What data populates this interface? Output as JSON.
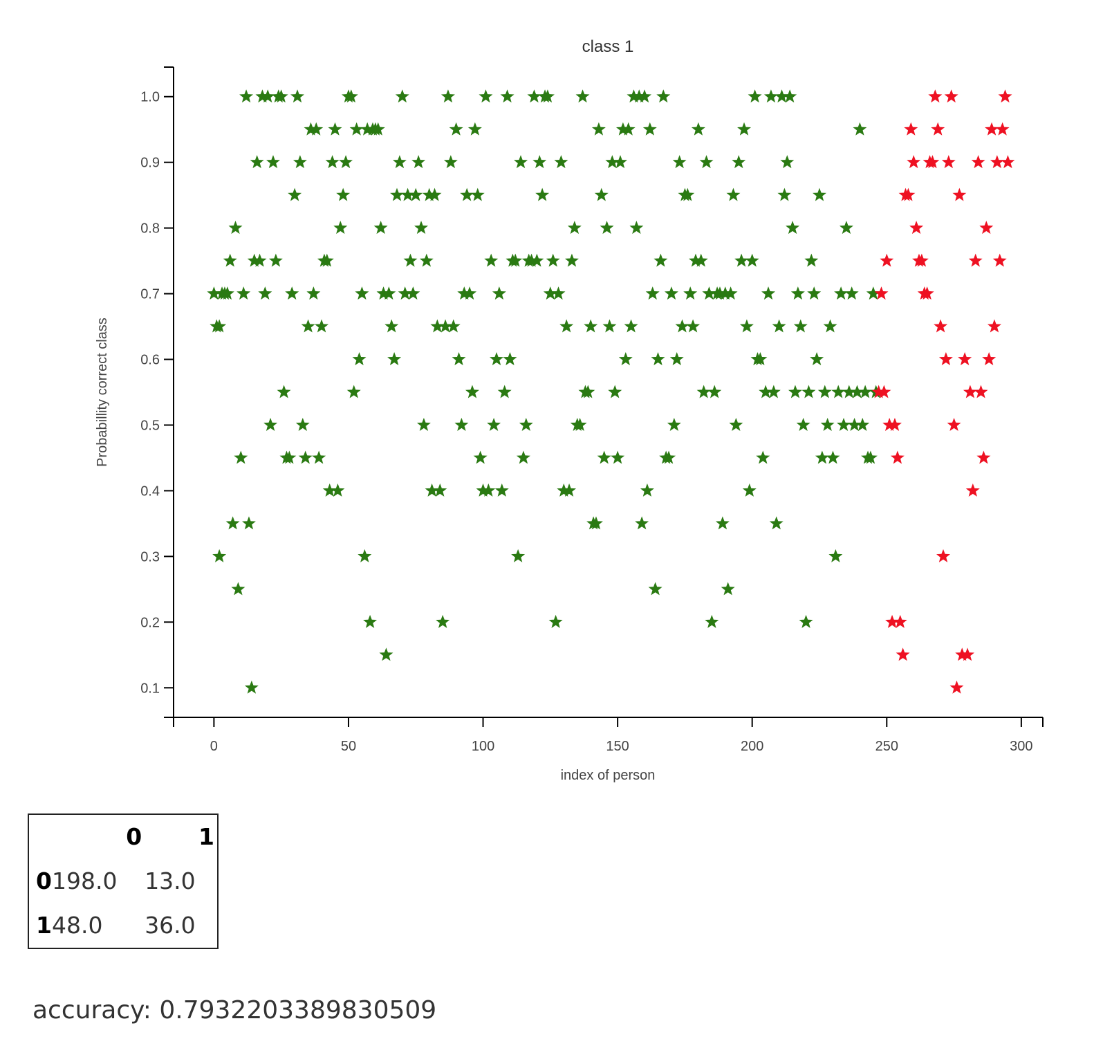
{
  "chart_data": {
    "type": "scatter",
    "title": "class 1",
    "xlabel": "index of person",
    "ylabel": "Probabillity correct class",
    "xlim": [
      -15,
      308
    ],
    "ylim": [
      0.055,
      1.045
    ],
    "x_ticks": [
      0,
      50,
      100,
      150,
      200,
      250,
      300
    ],
    "y_ticks": [
      0.1,
      0.2,
      0.3,
      0.4,
      0.5,
      0.6,
      0.7,
      0.8,
      0.9,
      1.0
    ],
    "marker": "star",
    "grid": false,
    "colors": {
      "green": "#2a7a12",
      "red": "#ee1122"
    },
    "points": [
      [
        0,
        0.7,
        "green"
      ],
      [
        1,
        0.65,
        "green"
      ],
      [
        2,
        0.65,
        "green"
      ],
      [
        2,
        0.3,
        "green"
      ],
      [
        3,
        0.7,
        "green"
      ],
      [
        4,
        0.7,
        "green"
      ],
      [
        5,
        0.7,
        "green"
      ],
      [
        6,
        0.75,
        "green"
      ],
      [
        7,
        0.35,
        "green"
      ],
      [
        8,
        0.8,
        "green"
      ],
      [
        9,
        0.25,
        "green"
      ],
      [
        10,
        0.45,
        "green"
      ],
      [
        11,
        0.7,
        "green"
      ],
      [
        12,
        1.0,
        "green"
      ],
      [
        13,
        0.35,
        "green"
      ],
      [
        14,
        0.1,
        "green"
      ],
      [
        15,
        0.75,
        "green"
      ],
      [
        16,
        0.9,
        "green"
      ],
      [
        17,
        0.75,
        "green"
      ],
      [
        18,
        1.0,
        "green"
      ],
      [
        19,
        0.7,
        "green"
      ],
      [
        20,
        1.0,
        "green"
      ],
      [
        21,
        0.5,
        "green"
      ],
      [
        22,
        0.9,
        "green"
      ],
      [
        23,
        0.75,
        "green"
      ],
      [
        24,
        1.0,
        "green"
      ],
      [
        25,
        1.0,
        "green"
      ],
      [
        26,
        0.55,
        "green"
      ],
      [
        27,
        0.45,
        "green"
      ],
      [
        28,
        0.45,
        "green"
      ],
      [
        29,
        0.7,
        "green"
      ],
      [
        30,
        0.85,
        "green"
      ],
      [
        31,
        1.0,
        "green"
      ],
      [
        32,
        0.9,
        "green"
      ],
      [
        33,
        0.5,
        "green"
      ],
      [
        34,
        0.45,
        "green"
      ],
      [
        35,
        0.65,
        "green"
      ],
      [
        36,
        0.95,
        "green"
      ],
      [
        37,
        0.7,
        "green"
      ],
      [
        38,
        0.95,
        "green"
      ],
      [
        39,
        0.45,
        "green"
      ],
      [
        40,
        0.65,
        "green"
      ],
      [
        41,
        0.75,
        "green"
      ],
      [
        42,
        0.75,
        "green"
      ],
      [
        43,
        0.4,
        "green"
      ],
      [
        44,
        0.9,
        "green"
      ],
      [
        45,
        0.95,
        "green"
      ],
      [
        46,
        0.4,
        "green"
      ],
      [
        47,
        0.8,
        "green"
      ],
      [
        48,
        0.85,
        "green"
      ],
      [
        49,
        0.9,
        "green"
      ],
      [
        50,
        1.0,
        "green"
      ],
      [
        51,
        1.0,
        "green"
      ],
      [
        52,
        0.55,
        "green"
      ],
      [
        53,
        0.95,
        "green"
      ],
      [
        54,
        0.6,
        "green"
      ],
      [
        55,
        0.7,
        "green"
      ],
      [
        56,
        0.3,
        "green"
      ],
      [
        57,
        0.95,
        "green"
      ],
      [
        58,
        0.2,
        "green"
      ],
      [
        59,
        0.95,
        "green"
      ],
      [
        60,
        0.95,
        "green"
      ],
      [
        61,
        0.95,
        "green"
      ],
      [
        62,
        0.8,
        "green"
      ],
      [
        63,
        0.7,
        "green"
      ],
      [
        64,
        0.15,
        "green"
      ],
      [
        65,
        0.7,
        "green"
      ],
      [
        66,
        0.65,
        "green"
      ],
      [
        67,
        0.6,
        "green"
      ],
      [
        68,
        0.85,
        "green"
      ],
      [
        69,
        0.9,
        "green"
      ],
      [
        70,
        1.0,
        "green"
      ],
      [
        71,
        0.7,
        "green"
      ],
      [
        72,
        0.85,
        "green"
      ],
      [
        73,
        0.75,
        "green"
      ],
      [
        74,
        0.7,
        "green"
      ],
      [
        75,
        0.85,
        "green"
      ],
      [
        76,
        0.9,
        "green"
      ],
      [
        77,
        0.8,
        "green"
      ],
      [
        78,
        0.5,
        "green"
      ],
      [
        79,
        0.75,
        "green"
      ],
      [
        80,
        0.85,
        "green"
      ],
      [
        81,
        0.4,
        "green"
      ],
      [
        82,
        0.85,
        "green"
      ],
      [
        83,
        0.65,
        "green"
      ],
      [
        84,
        0.4,
        "green"
      ],
      [
        85,
        0.2,
        "green"
      ],
      [
        86,
        0.65,
        "green"
      ],
      [
        87,
        1.0,
        "green"
      ],
      [
        88,
        0.9,
        "green"
      ],
      [
        89,
        0.65,
        "green"
      ],
      [
        90,
        0.95,
        "green"
      ],
      [
        91,
        0.6,
        "green"
      ],
      [
        92,
        0.5,
        "green"
      ],
      [
        93,
        0.7,
        "green"
      ],
      [
        94,
        0.85,
        "green"
      ],
      [
        95,
        0.7,
        "green"
      ],
      [
        96,
        0.55,
        "green"
      ],
      [
        97,
        0.95,
        "green"
      ],
      [
        98,
        0.85,
        "green"
      ],
      [
        99,
        0.45,
        "green"
      ],
      [
        100,
        0.4,
        "green"
      ],
      [
        101,
        1.0,
        "green"
      ],
      [
        102,
        0.4,
        "green"
      ],
      [
        103,
        0.75,
        "green"
      ],
      [
        104,
        0.5,
        "green"
      ],
      [
        105,
        0.6,
        "green"
      ],
      [
        106,
        0.7,
        "green"
      ],
      [
        107,
        0.4,
        "green"
      ],
      [
        108,
        0.55,
        "green"
      ],
      [
        109,
        1.0,
        "green"
      ],
      [
        110,
        0.6,
        "green"
      ],
      [
        111,
        0.75,
        "green"
      ],
      [
        112,
        0.75,
        "green"
      ],
      [
        113,
        0.3,
        "green"
      ],
      [
        114,
        0.9,
        "green"
      ],
      [
        115,
        0.45,
        "green"
      ],
      [
        116,
        0.5,
        "green"
      ],
      [
        117,
        0.75,
        "green"
      ],
      [
        118,
        0.75,
        "green"
      ],
      [
        119,
        1.0,
        "green"
      ],
      [
        120,
        0.75,
        "green"
      ],
      [
        121,
        0.9,
        "green"
      ],
      [
        122,
        0.85,
        "green"
      ],
      [
        123,
        1.0,
        "green"
      ],
      [
        124,
        1.0,
        "green"
      ],
      [
        125,
        0.7,
        "green"
      ],
      [
        126,
        0.75,
        "green"
      ],
      [
        127,
        0.2,
        "green"
      ],
      [
        128,
        0.7,
        "green"
      ],
      [
        129,
        0.9,
        "green"
      ],
      [
        130,
        0.4,
        "green"
      ],
      [
        131,
        0.65,
        "green"
      ],
      [
        132,
        0.4,
        "green"
      ],
      [
        133,
        0.75,
        "green"
      ],
      [
        134,
        0.8,
        "green"
      ],
      [
        135,
        0.5,
        "green"
      ],
      [
        136,
        0.5,
        "green"
      ],
      [
        137,
        1.0,
        "green"
      ],
      [
        138,
        0.55,
        "green"
      ],
      [
        139,
        0.55,
        "green"
      ],
      [
        140,
        0.65,
        "green"
      ],
      [
        141,
        0.35,
        "green"
      ],
      [
        142,
        0.35,
        "green"
      ],
      [
        143,
        0.95,
        "green"
      ],
      [
        144,
        0.85,
        "green"
      ],
      [
        145,
        0.45,
        "green"
      ],
      [
        146,
        0.8,
        "green"
      ],
      [
        147,
        0.65,
        "green"
      ],
      [
        148,
        0.9,
        "green"
      ],
      [
        149,
        0.55,
        "green"
      ],
      [
        150,
        0.45,
        "green"
      ],
      [
        151,
        0.9,
        "green"
      ],
      [
        152,
        0.95,
        "green"
      ],
      [
        153,
        0.6,
        "green"
      ],
      [
        154,
        0.95,
        "green"
      ],
      [
        155,
        0.65,
        "green"
      ],
      [
        156,
        1.0,
        "green"
      ],
      [
        157,
        0.8,
        "green"
      ],
      [
        158,
        1.0,
        "green"
      ],
      [
        159,
        0.35,
        "green"
      ],
      [
        160,
        1.0,
        "green"
      ],
      [
        161,
        0.4,
        "green"
      ],
      [
        162,
        0.95,
        "green"
      ],
      [
        163,
        0.7,
        "green"
      ],
      [
        164,
        0.25,
        "green"
      ],
      [
        165,
        0.6,
        "green"
      ],
      [
        166,
        0.75,
        "green"
      ],
      [
        167,
        1.0,
        "green"
      ],
      [
        168,
        0.45,
        "green"
      ],
      [
        169,
        0.45,
        "green"
      ],
      [
        170,
        0.7,
        "green"
      ],
      [
        171,
        0.5,
        "green"
      ],
      [
        172,
        0.6,
        "green"
      ],
      [
        173,
        0.9,
        "green"
      ],
      [
        174,
        0.65,
        "green"
      ],
      [
        175,
        0.85,
        "green"
      ],
      [
        176,
        0.85,
        "green"
      ],
      [
        177,
        0.7,
        "green"
      ],
      [
        178,
        0.65,
        "green"
      ],
      [
        179,
        0.75,
        "green"
      ],
      [
        180,
        0.95,
        "green"
      ],
      [
        181,
        0.75,
        "green"
      ],
      [
        182,
        0.55,
        "green"
      ],
      [
        183,
        0.9,
        "green"
      ],
      [
        184,
        0.7,
        "green"
      ],
      [
        185,
        0.2,
        "green"
      ],
      [
        186,
        0.55,
        "green"
      ],
      [
        187,
        0.7,
        "green"
      ],
      [
        188,
        0.7,
        "green"
      ],
      [
        189,
        0.35,
        "green"
      ],
      [
        190,
        0.7,
        "green"
      ],
      [
        191,
        0.25,
        "green"
      ],
      [
        192,
        0.7,
        "green"
      ],
      [
        193,
        0.85,
        "green"
      ],
      [
        194,
        0.5,
        "green"
      ],
      [
        195,
        0.9,
        "green"
      ],
      [
        196,
        0.75,
        "green"
      ],
      [
        197,
        0.95,
        "green"
      ],
      [
        198,
        0.65,
        "green"
      ],
      [
        199,
        0.4,
        "green"
      ],
      [
        200,
        0.75,
        "green"
      ],
      [
        201,
        1.0,
        "green"
      ],
      [
        202,
        0.6,
        "green"
      ],
      [
        203,
        0.6,
        "green"
      ],
      [
        204,
        0.45,
        "green"
      ],
      [
        205,
        0.55,
        "green"
      ],
      [
        206,
        0.7,
        "green"
      ],
      [
        207,
        1.0,
        "green"
      ],
      [
        208,
        0.55,
        "green"
      ],
      [
        209,
        0.35,
        "green"
      ],
      [
        210,
        0.65,
        "green"
      ],
      [
        211,
        1.0,
        "green"
      ],
      [
        212,
        0.85,
        "green"
      ],
      [
        213,
        0.9,
        "green"
      ],
      [
        214,
        1.0,
        "green"
      ],
      [
        215,
        0.8,
        "green"
      ],
      [
        216,
        0.55,
        "green"
      ],
      [
        217,
        0.7,
        "green"
      ],
      [
        218,
        0.65,
        "green"
      ],
      [
        219,
        0.5,
        "green"
      ],
      [
        220,
        0.2,
        "green"
      ],
      [
        221,
        0.55,
        "green"
      ],
      [
        222,
        0.75,
        "green"
      ],
      [
        223,
        0.7,
        "green"
      ],
      [
        224,
        0.6,
        "green"
      ],
      [
        225,
        0.85,
        "green"
      ],
      [
        226,
        0.45,
        "green"
      ],
      [
        227,
        0.55,
        "green"
      ],
      [
        228,
        0.5,
        "green"
      ],
      [
        229,
        0.65,
        "green"
      ],
      [
        230,
        0.45,
        "green"
      ],
      [
        231,
        0.3,
        "green"
      ],
      [
        232,
        0.55,
        "green"
      ],
      [
        233,
        0.7,
        "green"
      ],
      [
        234,
        0.5,
        "green"
      ],
      [
        235,
        0.8,
        "green"
      ],
      [
        236,
        0.55,
        "green"
      ],
      [
        237,
        0.7,
        "green"
      ],
      [
        238,
        0.5,
        "green"
      ],
      [
        239,
        0.55,
        "green"
      ],
      [
        240,
        0.95,
        "green"
      ],
      [
        241,
        0.5,
        "green"
      ],
      [
        242,
        0.55,
        "green"
      ],
      [
        243,
        0.45,
        "green"
      ],
      [
        244,
        0.45,
        "green"
      ],
      [
        245,
        0.7,
        "green"
      ],
      [
        246,
        0.55,
        "green"
      ],
      [
        247,
        0.55,
        "red"
      ],
      [
        248,
        0.7,
        "red"
      ],
      [
        249,
        0.55,
        "red"
      ],
      [
        250,
        0.75,
        "red"
      ],
      [
        251,
        0.5,
        "red"
      ],
      [
        252,
        0.2,
        "red"
      ],
      [
        253,
        0.5,
        "red"
      ],
      [
        254,
        0.45,
        "red"
      ],
      [
        255,
        0.2,
        "red"
      ],
      [
        256,
        0.15,
        "red"
      ],
      [
        257,
        0.85,
        "red"
      ],
      [
        258,
        0.85,
        "red"
      ],
      [
        259,
        0.95,
        "red"
      ],
      [
        260,
        0.9,
        "red"
      ],
      [
        261,
        0.8,
        "red"
      ],
      [
        262,
        0.75,
        "red"
      ],
      [
        263,
        0.75,
        "red"
      ],
      [
        264,
        0.7,
        "red"
      ],
      [
        265,
        0.7,
        "red"
      ],
      [
        266,
        0.9,
        "red"
      ],
      [
        267,
        0.9,
        "red"
      ],
      [
        268,
        1.0,
        "red"
      ],
      [
        269,
        0.95,
        "red"
      ],
      [
        270,
        0.65,
        "red"
      ],
      [
        271,
        0.3,
        "red"
      ],
      [
        272,
        0.6,
        "red"
      ],
      [
        273,
        0.9,
        "red"
      ],
      [
        274,
        1.0,
        "red"
      ],
      [
        275,
        0.5,
        "red"
      ],
      [
        276,
        0.1,
        "red"
      ],
      [
        277,
        0.85,
        "red"
      ],
      [
        278,
        0.15,
        "red"
      ],
      [
        279,
        0.6,
        "red"
      ],
      [
        280,
        0.15,
        "red"
      ],
      [
        281,
        0.55,
        "red"
      ],
      [
        282,
        0.4,
        "red"
      ],
      [
        283,
        0.75,
        "red"
      ],
      [
        284,
        0.9,
        "red"
      ],
      [
        285,
        0.55,
        "red"
      ],
      [
        286,
        0.45,
        "red"
      ],
      [
        287,
        0.8,
        "red"
      ],
      [
        288,
        0.6,
        "red"
      ],
      [
        289,
        0.95,
        "red"
      ],
      [
        290,
        0.65,
        "red"
      ],
      [
        291,
        0.9,
        "red"
      ],
      [
        292,
        0.75,
        "red"
      ],
      [
        293,
        0.95,
        "red"
      ],
      [
        294,
        1.0,
        "red"
      ],
      [
        295,
        0.9,
        "red"
      ]
    ]
  },
  "confusion_matrix": {
    "col_headers": [
      "0",
      "1"
    ],
    "rows": [
      {
        "label": "0",
        "values": [
          "198.0",
          "13.0"
        ]
      },
      {
        "label": "1",
        "values": [
          "48.0",
          "36.0"
        ]
      }
    ]
  },
  "accuracy_text": "accuracy: 0.7932203389830509"
}
